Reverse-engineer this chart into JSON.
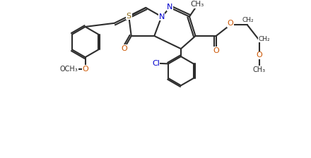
{
  "bg": "#ffffff",
  "lc": "#2d2d2d",
  "S_color": "#8B6914",
  "N_color": "#0000cc",
  "O_color": "#cc5500",
  "Cl_color": "#0000cc",
  "lw": 1.5,
  "fs": 8.0,
  "xlim": [
    0,
    10
  ],
  "ylim": [
    -1.0,
    5.5
  ]
}
